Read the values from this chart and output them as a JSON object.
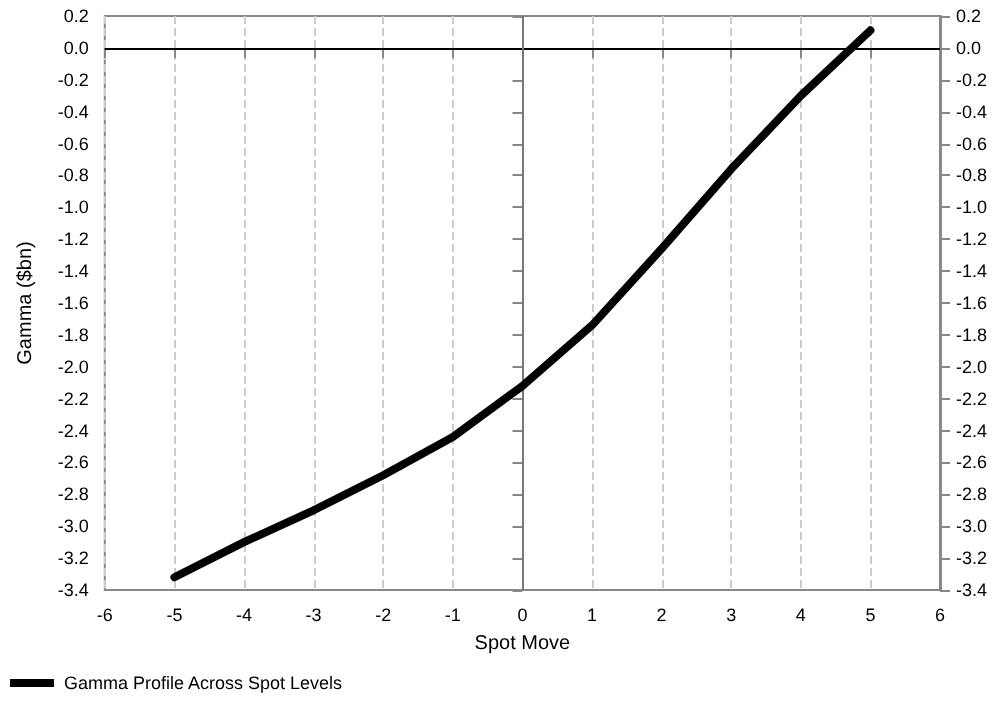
{
  "chart_data": {
    "type": "line",
    "xlabel": "Spot Move",
    "ylabel": "Gamma ($bn)",
    "x": [
      -5,
      -4,
      -3,
      -2,
      -1,
      0,
      1,
      2,
      3,
      4,
      5
    ],
    "series": [
      {
        "name": "Gamma Profile Across Spot Levels",
        "color": "#000000",
        "values": [
          -3.32,
          -3.1,
          -2.9,
          -2.68,
          -2.44,
          -2.12,
          -1.74,
          -1.26,
          -0.76,
          -0.3,
          0.11
        ]
      }
    ],
    "xlim": [
      -6,
      6
    ],
    "xticks": [
      -6,
      -5,
      -4,
      -3,
      -2,
      -1,
      0,
      1,
      2,
      3,
      4,
      5,
      6
    ],
    "ylim": [
      -3.4,
      0.2
    ],
    "yticks": [
      0.2,
      {
        "value": 0,
        "label": "0.0"
      },
      -0.2,
      -0.4,
      -0.6,
      -0.8,
      {
        "value": -1,
        "label": "-1.0"
      },
      -1.2,
      -1.4,
      -1.6,
      -1.8,
      {
        "value": -2,
        "label": "-2.0"
      },
      -2.2,
      -2.4,
      -2.6,
      -2.8,
      {
        "value": -3,
        "label": "-3.0"
      },
      -3.2,
      -3.4
    ],
    "y2lim": [
      -3.4,
      0.2
    ],
    "y2ticks": [
      0.2,
      {
        "value": 0,
        "label": "0.0"
      },
      -0.2,
      -0.4,
      -0.6,
      -0.8,
      {
        "value": -1,
        "label": "-1.0"
      },
      -1.2,
      -1.4,
      -1.6,
      -1.8,
      {
        "value": -2,
        "label": "-2.0"
      },
      -2.2,
      -2.4,
      -2.6,
      -2.8,
      {
        "value": -3,
        "label": "-3.0"
      },
      -3.2,
      -3.4
    ],
    "ref_lines": [
      {
        "axis": "y",
        "value": 0,
        "color": "#000000"
      },
      {
        "axis": "x",
        "value": 0,
        "color": "#777777"
      }
    ],
    "grid": "x",
    "legend": "bottom left",
    "marker": "none",
    "line_style": "solid"
  }
}
